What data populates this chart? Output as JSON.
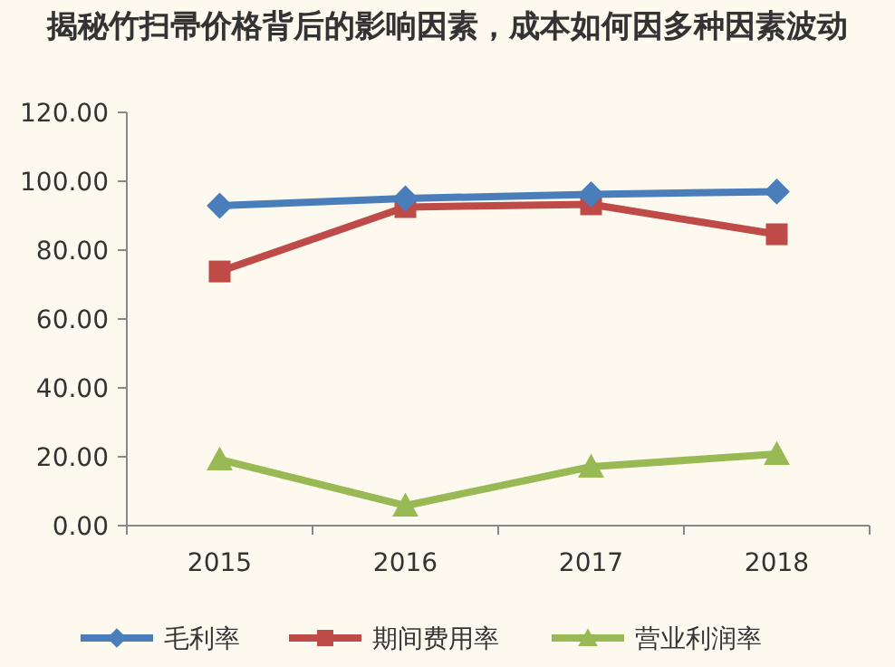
{
  "chart_data": {
    "type": "line",
    "title": "揭秘竹扫帚价格背后的影响因素，成本如何因多种因素波动",
    "categories": [
      "2015",
      "2016",
      "2017",
      "2018"
    ],
    "series": [
      {
        "name": "毛利率",
        "color": "#4a7ebb",
        "marker": "diamond",
        "values": [
          92.9,
          95.0,
          96.2,
          97.0
        ]
      },
      {
        "name": "期间费用率",
        "color": "#be4b48",
        "marker": "square",
        "values": [
          73.8,
          92.5,
          93.3,
          84.6
        ]
      },
      {
        "name": "营业利润率",
        "color": "#98b954",
        "marker": "triangle",
        "values": [
          19.2,
          5.8,
          17.1,
          20.8
        ]
      }
    ],
    "ylim": [
      0,
      120
    ],
    "yticks": [
      {
        "value": 0,
        "label": "0.00"
      },
      {
        "value": 20,
        "label": "20.00"
      },
      {
        "value": 40,
        "label": "40.00"
      },
      {
        "value": 60,
        "label": "60.00"
      },
      {
        "value": 80,
        "label": "80.00"
      },
      {
        "value": 100,
        "label": "100.00"
      },
      {
        "value": 120,
        "label": "120.00"
      }
    ],
    "grid": false,
    "legend": "bottom"
  }
}
